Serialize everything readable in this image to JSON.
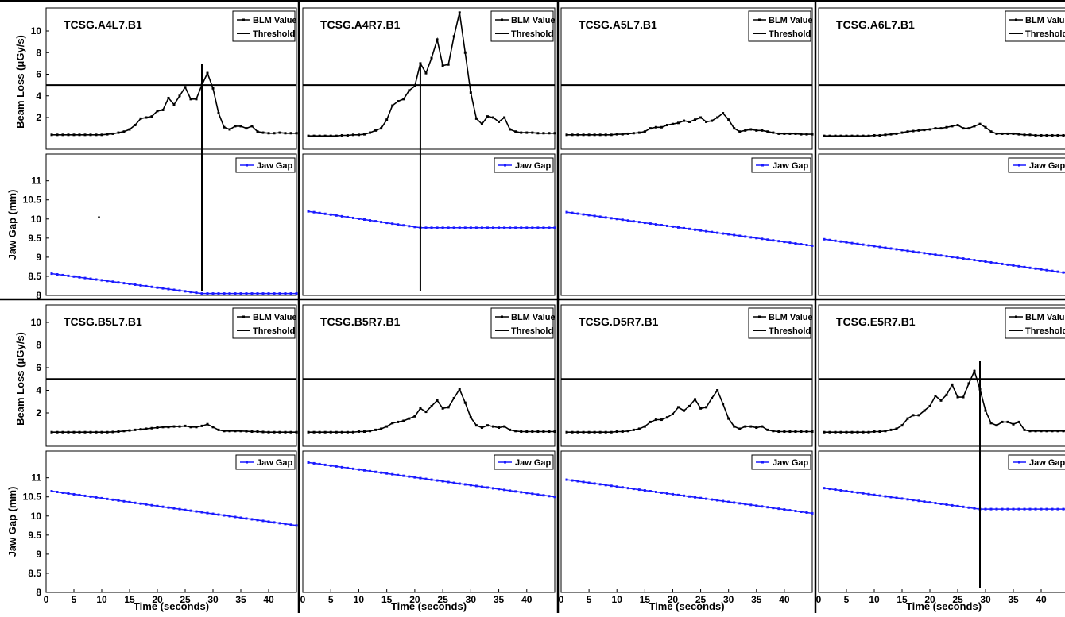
{
  "chart_data": {
    "type": "line",
    "blm_ylabel": "Beam Loss (μGy/s)",
    "jaw_ylabel": "Jaw Gap (mm)",
    "xlabel": "Time (seconds)",
    "blm_yticks": [
      2,
      4,
      6,
      8,
      10
    ],
    "jaw_yticks": [
      8,
      8.5,
      9,
      9.5,
      10,
      10.5,
      11
    ],
    "xticks": [
      0,
      5,
      10,
      15,
      20,
      25,
      30,
      35,
      40
    ],
    "xlim": [
      0,
      45
    ],
    "blm_ylim": [
      0,
      12
    ],
    "jaw_ylim": [
      8,
      11.7
    ],
    "threshold": 5,
    "legend": {
      "blm": "BLM Value",
      "threshold": "Threshold",
      "jaw": "Jaw Gap"
    },
    "colors": {
      "blm": "#000000",
      "jaw": "#1a1aff",
      "threshold": "#000000"
    },
    "panels": [
      {
        "title": "TCSG.A4L7.B1",
        "blm": [
          0.4,
          0.4,
          0.4,
          0.4,
          0.4,
          0.4,
          0.4,
          0.4,
          0.4,
          0.4,
          0.45,
          0.5,
          0.6,
          0.7,
          0.9,
          1.3,
          1.9,
          2.0,
          2.1,
          2.6,
          2.7,
          3.8,
          3.2,
          4.0,
          4.8,
          3.7,
          3.7,
          5.0,
          6.1,
          4.7,
          2.4,
          1.1,
          0.9,
          1.2,
          1.2,
          1.0,
          1.2,
          0.7,
          0.6,
          0.55,
          0.55,
          0.6,
          0.55,
          0.55,
          0.55
        ],
        "jaw_start": 8.57,
        "jaw_end": 8.05,
        "move_end": 28,
        "marker": 28,
        "stray_point": [
          9.5,
          10.05
        ]
      },
      {
        "title": "TCSG.A4R7.B1",
        "blm": [
          0.3,
          0.3,
          0.3,
          0.3,
          0.3,
          0.3,
          0.35,
          0.35,
          0.4,
          0.4,
          0.45,
          0.6,
          0.8,
          1.0,
          1.8,
          3.1,
          3.5,
          3.7,
          4.5,
          4.9,
          7.0,
          6.1,
          7.5,
          9.2,
          6.8,
          6.9,
          9.5,
          11.7,
          8.0,
          4.3,
          1.9,
          1.4,
          2.1,
          2.0,
          1.6,
          2.0,
          0.9,
          0.7,
          0.6,
          0.6,
          0.6,
          0.55,
          0.55,
          0.55,
          0.55
        ],
        "jaw_start": 10.2,
        "jaw_end": 9.77,
        "move_end": 21,
        "marker": 21
      },
      {
        "title": "TCSG.A5L7.B1",
        "blm": [
          0.4,
          0.4,
          0.4,
          0.4,
          0.4,
          0.4,
          0.4,
          0.4,
          0.4,
          0.45,
          0.45,
          0.5,
          0.55,
          0.6,
          0.7,
          1.0,
          1.1,
          1.1,
          1.3,
          1.4,
          1.5,
          1.7,
          1.6,
          1.8,
          2.0,
          1.6,
          1.7,
          2.0,
          2.4,
          1.8,
          1.0,
          0.7,
          0.8,
          0.9,
          0.8,
          0.8,
          0.7,
          0.6,
          0.5,
          0.5,
          0.5,
          0.5,
          0.45,
          0.45,
          0.45
        ],
        "jaw_start": 10.18,
        "jaw_end": 9.3,
        "move_end": 45,
        "marker": null
      },
      {
        "title": "TCSG.A6L7.B1",
        "blm": [
          0.3,
          0.3,
          0.3,
          0.3,
          0.3,
          0.3,
          0.3,
          0.3,
          0.3,
          0.35,
          0.35,
          0.4,
          0.45,
          0.5,
          0.6,
          0.7,
          0.75,
          0.8,
          0.85,
          0.9,
          1.0,
          1.0,
          1.1,
          1.2,
          1.3,
          1.0,
          1.0,
          1.2,
          1.4,
          1.1,
          0.7,
          0.5,
          0.5,
          0.5,
          0.5,
          0.45,
          0.4,
          0.4,
          0.35,
          0.35,
          0.35,
          0.35,
          0.35,
          0.35,
          0.35
        ],
        "jaw_start": 9.47,
        "jaw_end": 8.58,
        "move_end": 45,
        "marker": null
      },
      {
        "title": "TCSG.B5L7.B1",
        "blm": [
          0.3,
          0.3,
          0.3,
          0.3,
          0.3,
          0.3,
          0.3,
          0.3,
          0.3,
          0.3,
          0.3,
          0.32,
          0.35,
          0.4,
          0.45,
          0.5,
          0.55,
          0.6,
          0.65,
          0.7,
          0.75,
          0.75,
          0.8,
          0.8,
          0.85,
          0.75,
          0.75,
          0.85,
          1.0,
          0.75,
          0.5,
          0.4,
          0.4,
          0.4,
          0.4,
          0.38,
          0.35,
          0.35,
          0.32,
          0.3,
          0.3,
          0.3,
          0.3,
          0.3,
          0.3
        ],
        "jaw_start": 10.65,
        "jaw_end": 9.75,
        "move_end": 45,
        "marker": null
      },
      {
        "title": "TCSG.B5R7.B1",
        "blm": [
          0.3,
          0.3,
          0.3,
          0.3,
          0.3,
          0.3,
          0.3,
          0.3,
          0.3,
          0.35,
          0.35,
          0.4,
          0.5,
          0.6,
          0.8,
          1.1,
          1.2,
          1.3,
          1.5,
          1.7,
          2.4,
          2.1,
          2.6,
          3.1,
          2.4,
          2.5,
          3.3,
          4.1,
          2.9,
          1.6,
          0.9,
          0.7,
          0.9,
          0.8,
          0.7,
          0.8,
          0.5,
          0.4,
          0.35,
          0.35,
          0.35,
          0.35,
          0.35,
          0.35,
          0.35
        ],
        "jaw_start": 11.4,
        "jaw_end": 10.5,
        "move_end": 45,
        "marker": null
      },
      {
        "title": "TCSG.D5R7.B1",
        "blm": [
          0.3,
          0.3,
          0.3,
          0.3,
          0.3,
          0.3,
          0.3,
          0.3,
          0.3,
          0.35,
          0.35,
          0.4,
          0.5,
          0.6,
          0.8,
          1.2,
          1.4,
          1.4,
          1.6,
          1.9,
          2.5,
          2.2,
          2.6,
          3.2,
          2.4,
          2.5,
          3.3,
          4.0,
          2.8,
          1.5,
          0.8,
          0.6,
          0.8,
          0.8,
          0.7,
          0.8,
          0.5,
          0.4,
          0.35,
          0.35,
          0.35,
          0.35,
          0.35,
          0.35,
          0.35
        ],
        "jaw_start": 10.95,
        "jaw_end": 10.07,
        "move_end": 45,
        "marker": null
      },
      {
        "title": "TCSG.E5R7.B1",
        "blm": [
          0.3,
          0.3,
          0.3,
          0.3,
          0.3,
          0.3,
          0.3,
          0.3,
          0.3,
          0.35,
          0.35,
          0.4,
          0.5,
          0.6,
          0.9,
          1.5,
          1.8,
          1.8,
          2.2,
          2.6,
          3.5,
          3.1,
          3.6,
          4.5,
          3.4,
          3.4,
          4.6,
          5.7,
          4.1,
          2.2,
          1.1,
          0.9,
          1.2,
          1.2,
          1.0,
          1.2,
          0.5,
          0.4,
          0.4,
          0.4,
          0.4,
          0.4,
          0.4,
          0.4,
          0.4
        ],
        "jaw_start": 10.73,
        "jaw_end": 10.18,
        "move_end": 29,
        "marker": 29
      }
    ]
  }
}
